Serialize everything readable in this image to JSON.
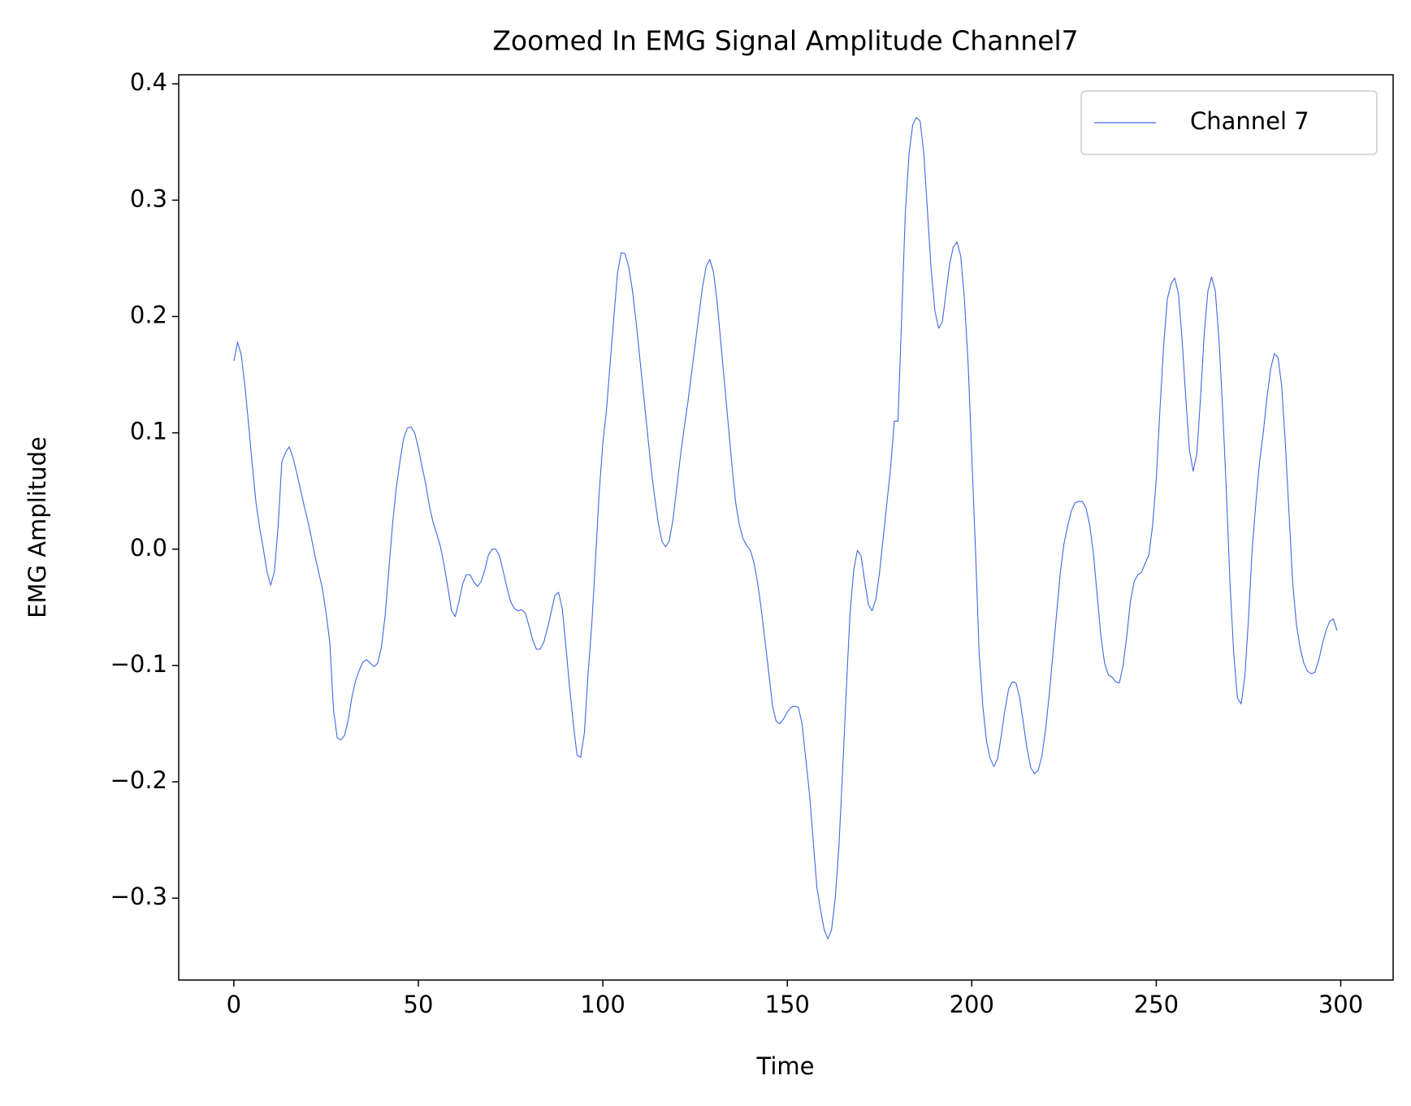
{
  "chart_data": {
    "type": "line",
    "title": "Zoomed In EMG Signal Amplitude Channel7",
    "xlabel": "Time",
    "ylabel": "EMG Amplitude",
    "legend": "upper right",
    "xlim": [
      -14.95,
      314.2
    ],
    "ylim": [
      -0.3704,
      0.4078
    ],
    "xticks": [
      0,
      50,
      100,
      150,
      200,
      250,
      300
    ],
    "yticks": [
      {
        "value": -0.3,
        "label": "−0.3"
      },
      {
        "value": -0.2,
        "label": "−0.2"
      },
      {
        "value": -0.1,
        "label": "−0.1"
      },
      {
        "value": 0,
        "label": "0.0"
      },
      0.1,
      0.2,
      0.3,
      0.4
    ],
    "x": [
      0,
      1,
      2,
      3,
      4,
      5,
      6,
      7,
      8,
      9,
      10,
      11,
      12,
      13,
      14,
      15,
      16,
      17,
      18,
      19,
      20,
      21,
      22,
      23,
      24,
      25,
      26,
      27,
      28,
      29,
      30,
      31,
      32,
      33,
      34,
      35,
      36,
      37,
      38,
      39,
      40,
      41,
      42,
      43,
      44,
      45,
      46,
      47,
      48,
      49,
      50,
      51,
      52,
      53,
      54,
      55,
      56,
      57,
      58,
      59,
      60,
      61,
      62,
      63,
      64,
      65,
      66,
      67,
      68,
      69,
      70,
      71,
      72,
      73,
      74,
      75,
      76,
      77,
      78,
      79,
      80,
      81,
      82,
      83,
      84,
      85,
      86,
      87,
      88,
      89,
      90,
      91,
      92,
      93,
      94,
      95,
      96,
      97,
      98,
      99,
      100,
      101,
      102,
      103,
      104,
      105,
      106,
      107,
      108,
      109,
      110,
      111,
      112,
      113,
      114,
      115,
      116,
      117,
      118,
      119,
      120,
      121,
      122,
      123,
      124,
      125,
      126,
      127,
      128,
      129,
      130,
      131,
      132,
      133,
      134,
      135,
      136,
      137,
      138,
      139,
      140,
      141,
      142,
      143,
      144,
      145,
      146,
      147,
      148,
      149,
      150,
      151,
      152,
      153,
      154,
      155,
      156,
      157,
      158,
      159,
      160,
      161,
      162,
      163,
      164,
      165,
      166,
      167,
      168,
      169,
      170,
      171,
      172,
      173,
      174,
      175,
      176,
      177,
      178,
      179,
      180,
      181,
      182,
      183,
      184,
      185,
      186,
      187,
      188,
      189,
      190,
      191,
      192,
      193,
      194,
      195,
      196,
      197,
      198,
      199,
      200,
      201,
      202,
      203,
      204,
      205,
      206,
      207,
      208,
      209,
      210,
      211,
      212,
      213,
      214,
      215,
      216,
      217,
      218,
      219,
      220,
      221,
      222,
      223,
      224,
      225,
      226,
      227,
      228,
      229,
      230,
      231,
      232,
      233,
      234,
      235,
      236,
      237,
      238,
      239,
      240,
      241,
      242,
      243,
      244,
      245,
      246,
      247,
      248,
      249,
      250,
      251,
      252,
      253,
      254,
      255,
      256,
      257,
      258,
      259,
      260,
      261,
      262,
      263,
      264,
      265,
      266,
      267,
      268,
      269,
      270,
      271,
      272,
      273,
      274,
      275,
      276,
      277,
      278,
      279,
      280,
      281,
      282,
      283,
      284,
      285,
      286,
      287,
      288,
      289,
      290,
      291,
      292,
      293,
      294,
      295,
      296,
      297,
      298,
      299
    ],
    "series": [
      {
        "name": "Channel 7",
        "color": "#4169e1",
        "values": [
          0.162,
          0.178,
          0.167,
          0.14,
          0.107,
          0.072,
          0.04,
          0.018,
          0.0,
          -0.02,
          -0.031,
          -0.019,
          0.02,
          0.075,
          0.083,
          0.088,
          0.079,
          0.066,
          0.052,
          0.038,
          0.025,
          0.01,
          -0.006,
          -0.02,
          -0.034,
          -0.055,
          -0.08,
          -0.138,
          -0.162,
          -0.164,
          -0.16,
          -0.147,
          -0.127,
          -0.113,
          -0.104,
          -0.097,
          -0.095,
          -0.098,
          -0.101,
          -0.098,
          -0.084,
          -0.057,
          -0.018,
          0.021,
          0.052,
          0.075,
          0.095,
          0.104,
          0.105,
          0.1,
          0.087,
          0.071,
          0.056,
          0.037,
          0.023,
          0.013,
          0.002,
          -0.014,
          -0.033,
          -0.053,
          -0.058,
          -0.045,
          -0.03,
          -0.022,
          -0.022,
          -0.028,
          -0.032,
          -0.028,
          -0.018,
          -0.005,
          0.0,
          0.0,
          -0.006,
          -0.019,
          -0.033,
          -0.045,
          -0.051,
          -0.053,
          -0.052,
          -0.055,
          -0.066,
          -0.078,
          -0.086,
          -0.086,
          -0.08,
          -0.068,
          -0.054,
          -0.04,
          -0.037,
          -0.051,
          -0.084,
          -0.119,
          -0.15,
          -0.177,
          -0.179,
          -0.158,
          -0.107,
          -0.065,
          -0.01,
          0.048,
          0.091,
          0.12,
          0.16,
          0.2,
          0.238,
          0.255,
          0.254,
          0.243,
          0.223,
          0.196,
          0.165,
          0.134,
          0.103,
          0.072,
          0.046,
          0.023,
          0.007,
          0.002,
          0.007,
          0.025,
          0.052,
          0.079,
          0.103,
          0.125,
          0.15,
          0.175,
          0.2,
          0.225,
          0.243,
          0.249,
          0.238,
          0.212,
          0.177,
          0.142,
          0.107,
          0.072,
          0.04,
          0.021,
          0.009,
          0.003,
          -0.001,
          -0.012,
          -0.03,
          -0.053,
          -0.08,
          -0.107,
          -0.135,
          -0.148,
          -0.15,
          -0.146,
          -0.14,
          -0.136,
          -0.135,
          -0.136,
          -0.15,
          -0.18,
          -0.21,
          -0.25,
          -0.29,
          -0.31,
          -0.327,
          -0.335,
          -0.327,
          -0.3,
          -0.255,
          -0.19,
          -0.12,
          -0.055,
          -0.018,
          -0.001,
          -0.006,
          -0.028,
          -0.048,
          -0.053,
          -0.043,
          -0.02,
          0.01,
          0.04,
          0.07,
          0.11,
          0.11,
          0.2,
          0.29,
          0.34,
          0.365,
          0.371,
          0.368,
          0.34,
          0.29,
          0.24,
          0.205,
          0.19,
          0.195,
          0.22,
          0.245,
          0.26,
          0.264,
          0.252,
          0.215,
          0.16,
          0.08,
          0.0,
          -0.09,
          -0.135,
          -0.165,
          -0.18,
          -0.187,
          -0.18,
          -0.16,
          -0.138,
          -0.12,
          -0.114,
          -0.115,
          -0.128,
          -0.15,
          -0.172,
          -0.188,
          -0.193,
          -0.19,
          -0.178,
          -0.155,
          -0.125,
          -0.09,
          -0.055,
          -0.02,
          0.005,
          0.02,
          0.033,
          0.04,
          0.041,
          0.041,
          0.035,
          0.02,
          -0.005,
          -0.04,
          -0.075,
          -0.098,
          -0.108,
          -0.11,
          -0.114,
          -0.115,
          -0.1,
          -0.075,
          -0.045,
          -0.028,
          -0.022,
          -0.02,
          -0.012,
          -0.005,
          0.02,
          0.06,
          0.12,
          0.175,
          0.215,
          0.228,
          0.233,
          0.22,
          0.18,
          0.13,
          0.085,
          0.067,
          0.082,
          0.13,
          0.185,
          0.222,
          0.234,
          0.222,
          0.18,
          0.12,
          0.05,
          -0.03,
          -0.09,
          -0.128,
          -0.133,
          -0.11,
          -0.06,
          0.0,
          0.04,
          0.075,
          0.1,
          0.13,
          0.155,
          0.168,
          0.165,
          0.14,
          0.09,
          0.03,
          -0.03,
          -0.065,
          -0.085,
          -0.098,
          -0.105,
          -0.107,
          -0.106,
          -0.096,
          -0.082,
          -0.07,
          -0.062,
          -0.06,
          -0.07
        ]
      }
    ]
  }
}
